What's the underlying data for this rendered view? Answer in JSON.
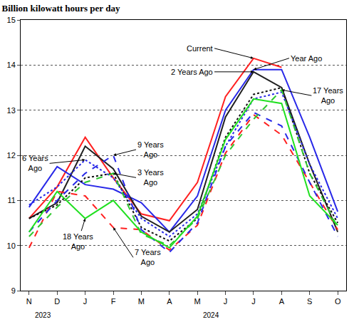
{
  "chart_data": {
    "type": "line",
    "title": "Billion kilowatt hours per day",
    "categories": [
      "N",
      "D",
      "J",
      "F",
      "M",
      "A",
      "M",
      "J",
      "J",
      "A",
      "S",
      "O"
    ],
    "annotations": [
      "2023",
      "2024"
    ],
    "series": [
      {
        "name": "Current",
        "color": "#ff2020",
        "line_style": "solid",
        "values": [
          10.6,
          11.3,
          12.4,
          11.5,
          10.7,
          10.55,
          11.4,
          13.3,
          14.15,
          13.95,
          null,
          null
        ]
      },
      {
        "name": "Year Ago",
        "color": "#2828e8",
        "line_style": "solid",
        "values": [
          10.85,
          11.75,
          11.35,
          11.25,
          10.95,
          10.3,
          11.1,
          13.0,
          13.9,
          13.9,
          12.4,
          10.75
        ]
      },
      {
        "name": "2 Years Ago",
        "color": "#202020",
        "line_style": "solid",
        "values": [
          10.6,
          10.95,
          12.2,
          11.7,
          10.65,
          10.3,
          10.8,
          12.85,
          13.85,
          13.5,
          11.8,
          10.3
        ]
      },
      {
        "name": "3 Years Ago",
        "color": "#101010",
        "line_style": "dot",
        "values": [
          10.6,
          10.9,
          11.5,
          11.6,
          10.4,
          10.1,
          10.6,
          12.4,
          13.35,
          13.5,
          11.6,
          10.5
        ]
      },
      {
        "name": "6 Years Ago",
        "color": "#2828e8",
        "line_style": "dot",
        "values": [
          10.9,
          11.3,
          11.9,
          11.5,
          10.6,
          10.2,
          10.7,
          12.2,
          13.25,
          13.4,
          11.8,
          10.6
        ]
      },
      {
        "name": "7 Years Ago",
        "color": "#ff2020",
        "line_style": "dash",
        "values": [
          9.95,
          11.2,
          11.1,
          10.4,
          10.35,
          9.9,
          10.45,
          12.05,
          12.9,
          12.45,
          11.4,
          10.35
        ]
      },
      {
        "name": "9 Years Ago",
        "color": "#2828e8",
        "line_style": "dash",
        "values": [
          10.3,
          11.0,
          11.6,
          12.0,
          10.35,
          9.85,
          10.5,
          12.2,
          12.95,
          12.65,
          11.4,
          10.2
        ]
      },
      {
        "name": "17 Years Ago",
        "color": "#30c830",
        "line_style": "dash",
        "values": [
          10.2,
          10.85,
          11.4,
          11.6,
          10.25,
          10.0,
          10.6,
          12.0,
          12.8,
          13.45,
          11.6,
          10.4
        ]
      },
      {
        "name": "18 Years Ago",
        "color": "#20e020",
        "line_style": "solid",
        "values": [
          10.3,
          11.2,
          10.6,
          11.0,
          10.3,
          9.95,
          10.65,
          12.35,
          13.25,
          13.15,
          11.1,
          10.45
        ]
      }
    ],
    "ylim": [
      9,
      15
    ],
    "yticks": [
      9,
      10,
      11,
      12,
      13,
      14,
      15
    ],
    "grid": true
  }
}
